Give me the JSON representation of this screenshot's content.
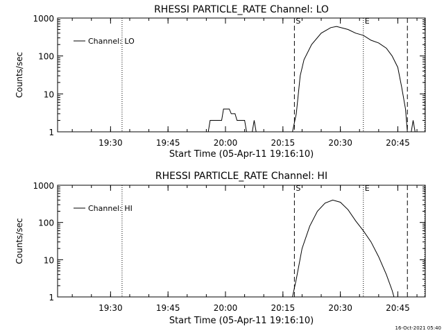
{
  "footer": {
    "timestamp": "16-Oct-2021 05:40"
  },
  "chart_data": [
    {
      "type": "line",
      "title": "RHESSI PARTICLE_RATE Channel: LO",
      "xlabel": "Start Time (05-Apr-11 19:16:10)",
      "ylabel": "Counts/sec",
      "yscale": "log",
      "ylim": [
        1,
        1000
      ],
      "xlim_minutes_after_1916": [
        0,
        96
      ],
      "x_ticks": [
        "19:30",
        "19:45",
        "20:00",
        "20:15",
        "20:30",
        "20:45"
      ],
      "y_ticks": [
        "1",
        "10",
        "100",
        "1000"
      ],
      "legend": {
        "label": "Channel: LO",
        "position": "top-left"
      },
      "markers": [
        {
          "label": "S",
          "time": "20:18:00",
          "style": "dashed"
        },
        {
          "label": "E",
          "time": "20:36:00",
          "style": "dotted"
        },
        {
          "label": "",
          "time": "20:47:30",
          "style": "dashed"
        },
        {
          "label": "",
          "time": "19:33:00",
          "style": "dotted"
        },
        {
          "label": "",
          "time": "20:52:00",
          "style": "dotted"
        }
      ],
      "series": [
        {
          "name": "Channel: LO",
          "segments": [
            [
              [
                "19:54:00",
                1
              ],
              [
                "19:55:30",
                1
              ],
              [
                "19:56:00",
                2
              ],
              [
                "19:59:00",
                2
              ],
              [
                "19:59:30",
                4
              ],
              [
                "20:01:00",
                4
              ],
              [
                "20:01:30",
                3
              ],
              [
                "20:02:30",
                3
              ],
              [
                "20:03:00",
                2
              ],
              [
                "20:05:00",
                2
              ],
              [
                "20:05:30",
                1
              ],
              [
                "20:06:00",
                1
              ]
            ],
            [
              [
                "20:07:00",
                1
              ],
              [
                "20:07:30",
                2
              ],
              [
                "20:08:00",
                1
              ]
            ],
            [
              [
                "20:17:30",
                1
              ],
              [
                "20:18:30",
                3
              ],
              [
                "20:19:30",
                30
              ],
              [
                "20:20:30",
                80
              ],
              [
                "20:22:30",
                200
              ],
              [
                "20:25:00",
                400
              ],
              [
                "20:27:30",
                560
              ],
              [
                "20:29:00",
                600
              ],
              [
                "20:32:00",
                500
              ],
              [
                "20:34:00",
                400
              ],
              [
                "20:36:00",
                350
              ],
              [
                "20:38:00",
                260
              ],
              [
                "20:40:00",
                220
              ],
              [
                "20:42:00",
                160
              ],
              [
                "20:43:30",
                100
              ],
              [
                "20:45:00",
                50
              ],
              [
                "20:46:00",
                15
              ],
              [
                "20:47:00",
                4
              ],
              [
                "20:47:30",
                1
              ]
            ],
            [
              [
                "20:48:30",
                1
              ],
              [
                "20:49:00",
                2
              ],
              [
                "20:49:30",
                1
              ]
            ]
          ]
        }
      ]
    },
    {
      "type": "line",
      "title": "RHESSI PARTICLE_RATE Channel: HI",
      "xlabel": "Start Time (05-Apr-11 19:16:10)",
      "ylabel": "Counts/sec",
      "yscale": "log",
      "ylim": [
        1,
        1000
      ],
      "xlim_minutes_after_1916": [
        0,
        96
      ],
      "x_ticks": [
        "19:30",
        "19:45",
        "20:00",
        "20:15",
        "20:30",
        "20:45"
      ],
      "y_ticks": [
        "1",
        "10",
        "100",
        "1000"
      ],
      "legend": {
        "label": "Channel: HI",
        "position": "top-left"
      },
      "markers": [
        {
          "label": "S",
          "time": "20:18:00",
          "style": "dashed"
        },
        {
          "label": "E",
          "time": "20:36:00",
          "style": "dotted"
        },
        {
          "label": "",
          "time": "20:47:30",
          "style": "dashed"
        },
        {
          "label": "",
          "time": "19:33:00",
          "style": "dotted"
        },
        {
          "label": "",
          "time": "20:52:00",
          "style": "dotted"
        }
      ],
      "series": [
        {
          "name": "Channel: HI",
          "segments": [
            [
              [
                "20:17:30",
                1
              ],
              [
                "20:18:30",
                3
              ],
              [
                "20:20:00",
                20
              ],
              [
                "20:22:00",
                80
              ],
              [
                "20:24:00",
                200
              ],
              [
                "20:26:00",
                330
              ],
              [
                "20:28:00",
                400
              ],
              [
                "20:30:00",
                350
              ],
              [
                "20:32:00",
                220
              ],
              [
                "20:34:00",
                110
              ],
              [
                "20:36:00",
                60
              ],
              [
                "20:38:00",
                30
              ],
              [
                "20:40:00",
                12
              ],
              [
                "20:42:00",
                4
              ],
              [
                "20:43:30",
                1.5
              ],
              [
                "20:44:00",
                1
              ]
            ]
          ]
        }
      ]
    }
  ]
}
